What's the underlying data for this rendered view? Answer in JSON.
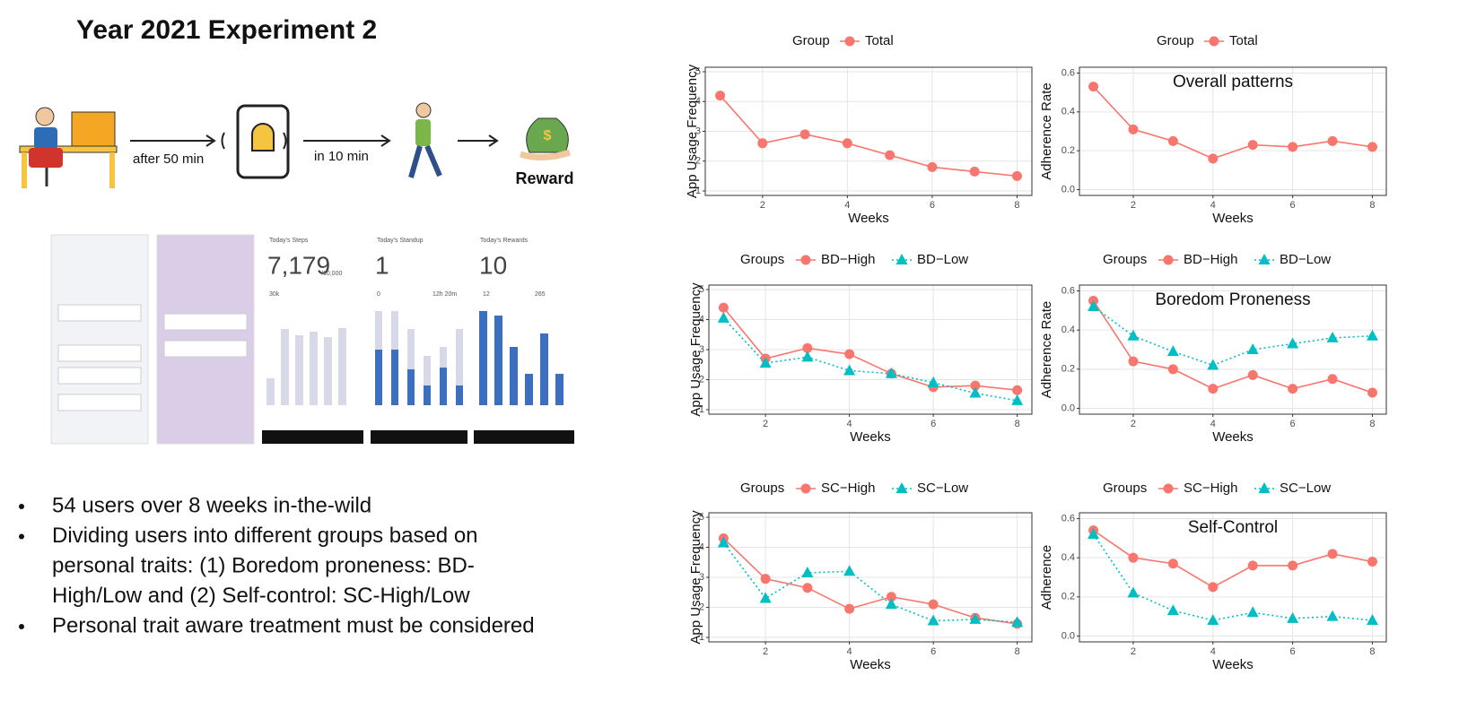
{
  "slide": {
    "title": "Year 2021 Experiment 2",
    "flow": {
      "step1": "after 50 min",
      "step2": "in 10 min",
      "reward": "Reward"
    },
    "screens": {
      "steps_title": "Today's Steps",
      "steps_value": "7,179",
      "steps_goal": "/10,000",
      "steps_axis": "30k",
      "standup_title": "Today's Standup",
      "standup_value": "1",
      "standup_min": "0",
      "standup_max": "12h 20m",
      "rewards_title": "Today's Rewards",
      "rewards_value": "10",
      "rewards_min": "12",
      "rewards_max": "265"
    },
    "bullets": [
      [
        "54 users over 8 weeks in-the-wild"
      ],
      [
        "Dividing users into different groups based on",
        "personal traits: (1) Boredom proneness: BD-",
        "High/Low and (2) Self-control: SC-High/Low"
      ],
      [
        "Personal trait aware treatment must be considered"
      ]
    ]
  },
  "chart_data": [
    {
      "type": "line",
      "legend_title": "Group",
      "legend": "top",
      "y_label": "App Usage Frequency",
      "x_label": "Weeks",
      "x": [
        1,
        2,
        3,
        4,
        5,
        6,
        7,
        8
      ],
      "xlim": [
        0.65,
        8.35
      ],
      "xticks": [
        2,
        4,
        6,
        8
      ],
      "ylim": [
        0.85,
        5.15
      ],
      "yticks": [
        1,
        2,
        3,
        4,
        5
      ],
      "grid": true,
      "series": [
        {
          "name": "Total",
          "color": "#F8766D",
          "marker": "circle",
          "dash": "solid",
          "values": [
            4.2,
            2.6,
            2.9,
            2.6,
            2.2,
            1.8,
            1.65,
            1.5
          ]
        }
      ]
    },
    {
      "type": "line",
      "legend_title": "Group",
      "legend": "top",
      "y_label": "Adherence Rate",
      "x_label": "Weeks",
      "annotation": "Overall patterns",
      "x": [
        1,
        2,
        3,
        4,
        5,
        6,
        7,
        8
      ],
      "xlim": [
        0.65,
        8.35
      ],
      "xticks": [
        2,
        4,
        6,
        8
      ],
      "ylim": [
        -0.03,
        0.63
      ],
      "yticks": [
        {
          "value": 0,
          "label": "0.0"
        },
        0.2,
        0.4,
        0.6
      ],
      "grid": true,
      "series": [
        {
          "name": "Total",
          "color": "#F8766D",
          "marker": "circle",
          "dash": "solid",
          "values": [
            0.53,
            0.31,
            0.25,
            0.16,
            0.23,
            0.22,
            0.25,
            0.22
          ]
        }
      ]
    },
    {
      "type": "line",
      "legend_title": "Groups",
      "legend": "top",
      "y_label": "App Usage Frequency",
      "x_label": "Weeks",
      "x": [
        1,
        2,
        3,
        4,
        5,
        6,
        7,
        8
      ],
      "xlim": [
        0.65,
        8.35
      ],
      "xticks": [
        2,
        4,
        6,
        8
      ],
      "ylim": [
        0.85,
        5.15
      ],
      "yticks": [
        1,
        2,
        3,
        4,
        5
      ],
      "grid": true,
      "series": [
        {
          "name": "BD−High",
          "color": "#F8766D",
          "marker": "circle",
          "dash": "solid",
          "values": [
            4.4,
            2.7,
            3.05,
            2.85,
            2.2,
            1.75,
            1.8,
            1.65
          ]
        },
        {
          "name": "BD−Low",
          "color": "#00BFC4",
          "marker": "triangle",
          "dash": "dotted",
          "values": [
            4.05,
            2.55,
            2.75,
            2.3,
            2.2,
            1.9,
            1.55,
            1.3
          ]
        }
      ]
    },
    {
      "type": "line",
      "legend_title": "Groups",
      "legend": "top",
      "y_label": "Adherence Rate",
      "x_label": "Weeks",
      "annotation": "Boredom Proneness",
      "x": [
        1,
        2,
        3,
        4,
        5,
        6,
        7,
        8
      ],
      "xlim": [
        0.65,
        8.35
      ],
      "xticks": [
        2,
        4,
        6,
        8
      ],
      "ylim": [
        -0.03,
        0.63
      ],
      "yticks": [
        {
          "value": 0,
          "label": "0.0"
        },
        0.2,
        0.4,
        0.6
      ],
      "grid": true,
      "series": [
        {
          "name": "BD−High",
          "color": "#F8766D",
          "marker": "circle",
          "dash": "solid",
          "values": [
            0.55,
            0.24,
            0.2,
            0.1,
            0.17,
            0.1,
            0.15,
            0.08
          ]
        },
        {
          "name": "BD−Low",
          "color": "#00BFC4",
          "marker": "triangle",
          "dash": "dotted",
          "values": [
            0.52,
            0.37,
            0.29,
            0.22,
            0.3,
            0.33,
            0.36,
            0.37
          ]
        }
      ]
    },
    {
      "type": "line",
      "legend_title": "Groups",
      "legend": "top",
      "y_label": "App Usage Frequency",
      "x_label": "Weeks",
      "x": [
        1,
        2,
        3,
        4,
        5,
        6,
        7,
        8
      ],
      "xlim": [
        0.65,
        8.35
      ],
      "xticks": [
        2,
        4,
        6,
        8
      ],
      "ylim": [
        0.85,
        5.15
      ],
      "yticks": [
        1,
        2,
        3,
        4,
        5
      ],
      "grid": true,
      "series": [
        {
          "name": "SC−High",
          "color": "#F8766D",
          "marker": "circle",
          "dash": "solid",
          "values": [
            4.3,
            2.95,
            2.65,
            1.95,
            2.35,
            2.1,
            1.65,
            1.45
          ]
        },
        {
          "name": "SC−Low",
          "color": "#00BFC4",
          "marker": "triangle",
          "dash": "dotted",
          "values": [
            4.15,
            2.3,
            3.15,
            3.2,
            2.1,
            1.55,
            1.6,
            1.5
          ]
        }
      ]
    },
    {
      "type": "line",
      "legend_title": "Groups",
      "legend": "top",
      "y_label": "Adherence",
      "x_label": "Weeks",
      "annotation": "Self-Control",
      "x": [
        1,
        2,
        3,
        4,
        5,
        6,
        7,
        8
      ],
      "xlim": [
        0.65,
        8.35
      ],
      "xticks": [
        2,
        4,
        6,
        8
      ],
      "ylim": [
        -0.03,
        0.63
      ],
      "yticks": [
        {
          "value": 0,
          "label": "0.0"
        },
        0.2,
        0.4,
        0.6
      ],
      "grid": true,
      "series": [
        {
          "name": "SC−High",
          "color": "#F8766D",
          "marker": "circle",
          "dash": "solid",
          "values": [
            0.54,
            0.4,
            0.37,
            0.25,
            0.36,
            0.36,
            0.42,
            0.38
          ]
        },
        {
          "name": "SC−Low",
          "color": "#00BFC4",
          "marker": "triangle",
          "dash": "dotted",
          "values": [
            0.52,
            0.22,
            0.13,
            0.08,
            0.12,
            0.09,
            0.1,
            0.08
          ]
        }
      ]
    }
  ]
}
